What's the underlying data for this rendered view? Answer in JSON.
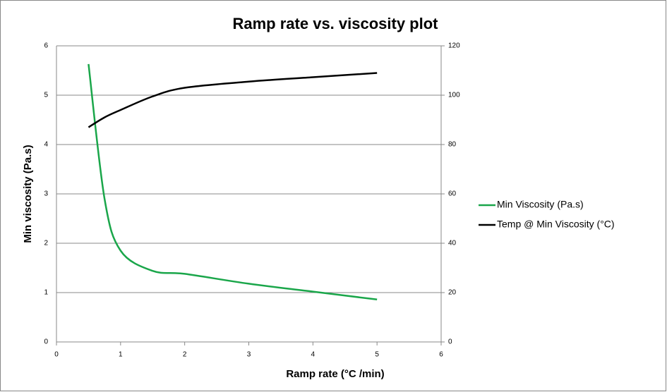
{
  "chart_data": {
    "type": "line",
    "title": "Ramp rate vs. viscosity plot",
    "x_label": "Ramp rate (°C /min)",
    "y_label": "Min viscosity (Pa.s)",
    "x": [
      0.5,
      0.75,
      1,
      1.5,
      2,
      3,
      4,
      5
    ],
    "series": [
      {
        "name": "Min Viscosity (Pa.s)",
        "color": "#1aa64a",
        "values": [
          5.63,
          2.9,
          1.85,
          1.44,
          1.38,
          1.18,
          1.02,
          0.86
        ]
      },
      {
        "name": "Temp @ Min Viscosity (°C)",
        "color": "#000000",
        "axis": "y2",
        "values": [
          87,
          91,
          94,
          99.5,
          103,
          105.5,
          107.3,
          109
        ]
      }
    ],
    "xlim": [
      0,
      6
    ],
    "xticks": [
      0,
      1,
      2,
      3,
      4,
      5,
      6
    ],
    "ylim": [
      0,
      6
    ],
    "yticks": [
      0,
      1,
      2,
      3,
      4,
      5,
      6
    ],
    "y2lim": [
      0,
      120
    ],
    "y2ticks": [
      0,
      20,
      40,
      60,
      80,
      100,
      120
    ],
    "grid": true,
    "legend": "right"
  }
}
